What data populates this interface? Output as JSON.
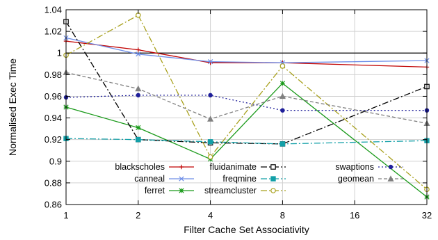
{
  "chart_data": {
    "type": "line",
    "title": "",
    "xlabel": "Filter Cache Set Associativity",
    "ylabel": "Normalised Exec Time",
    "x": [
      "1",
      "2",
      "4",
      "8",
      "16",
      "32"
    ],
    "ylim": [
      0.86,
      1.04
    ],
    "yticks": [
      "0.86",
      "0.88",
      "0.9",
      "0.92",
      "0.94",
      "0.96",
      "0.98",
      "1",
      "1.02",
      "1.04"
    ],
    "grid": true,
    "legend_position": "bottom",
    "reference_line": 1.0,
    "series": [
      {
        "name": "blackscholes",
        "color": "#c00000",
        "dash": "solid",
        "marker": "plus",
        "values": [
          1.011,
          1.003,
          0.991,
          0.991,
          null,
          0.987
        ]
      },
      {
        "name": "canneal",
        "color": "#6f8fe8",
        "dash": "solid",
        "marker": "x",
        "values": [
          1.014,
          0.999,
          0.992,
          0.991,
          null,
          0.993
        ]
      },
      {
        "name": "ferret",
        "color": "#1a9a1a",
        "dash": "solid",
        "marker": "star",
        "values": [
          0.95,
          0.931,
          0.902,
          0.972,
          null,
          0.867
        ]
      },
      {
        "name": "fluidanimate",
        "color": "#000000",
        "dash": "dashdot",
        "marker": "square",
        "values": [
          1.029,
          0.92,
          0.917,
          0.916,
          null,
          0.969
        ]
      },
      {
        "name": "freqmine",
        "color": "#13a0a8",
        "dash": "dashdot",
        "marker": "filled-square",
        "values": [
          0.921,
          0.92,
          0.918,
          0.916,
          null,
          0.919
        ]
      },
      {
        "name": "streamcluster",
        "color": "#a8a01c",
        "dash": "dashdot",
        "marker": "circle",
        "values": [
          0.998,
          1.035,
          0.904,
          0.988,
          null,
          0.874
        ]
      },
      {
        "name": "swaptions",
        "color": "#20209a",
        "dash": "dotted",
        "marker": "filled-circle",
        "values": [
          0.959,
          0.961,
          0.961,
          0.947,
          null,
          0.947
        ]
      },
      {
        "name": "geomean",
        "color": "#808080",
        "dash": "dashed",
        "marker": "triangle",
        "values": [
          0.982,
          0.967,
          0.939,
          0.96,
          null,
          0.935
        ]
      }
    ]
  }
}
